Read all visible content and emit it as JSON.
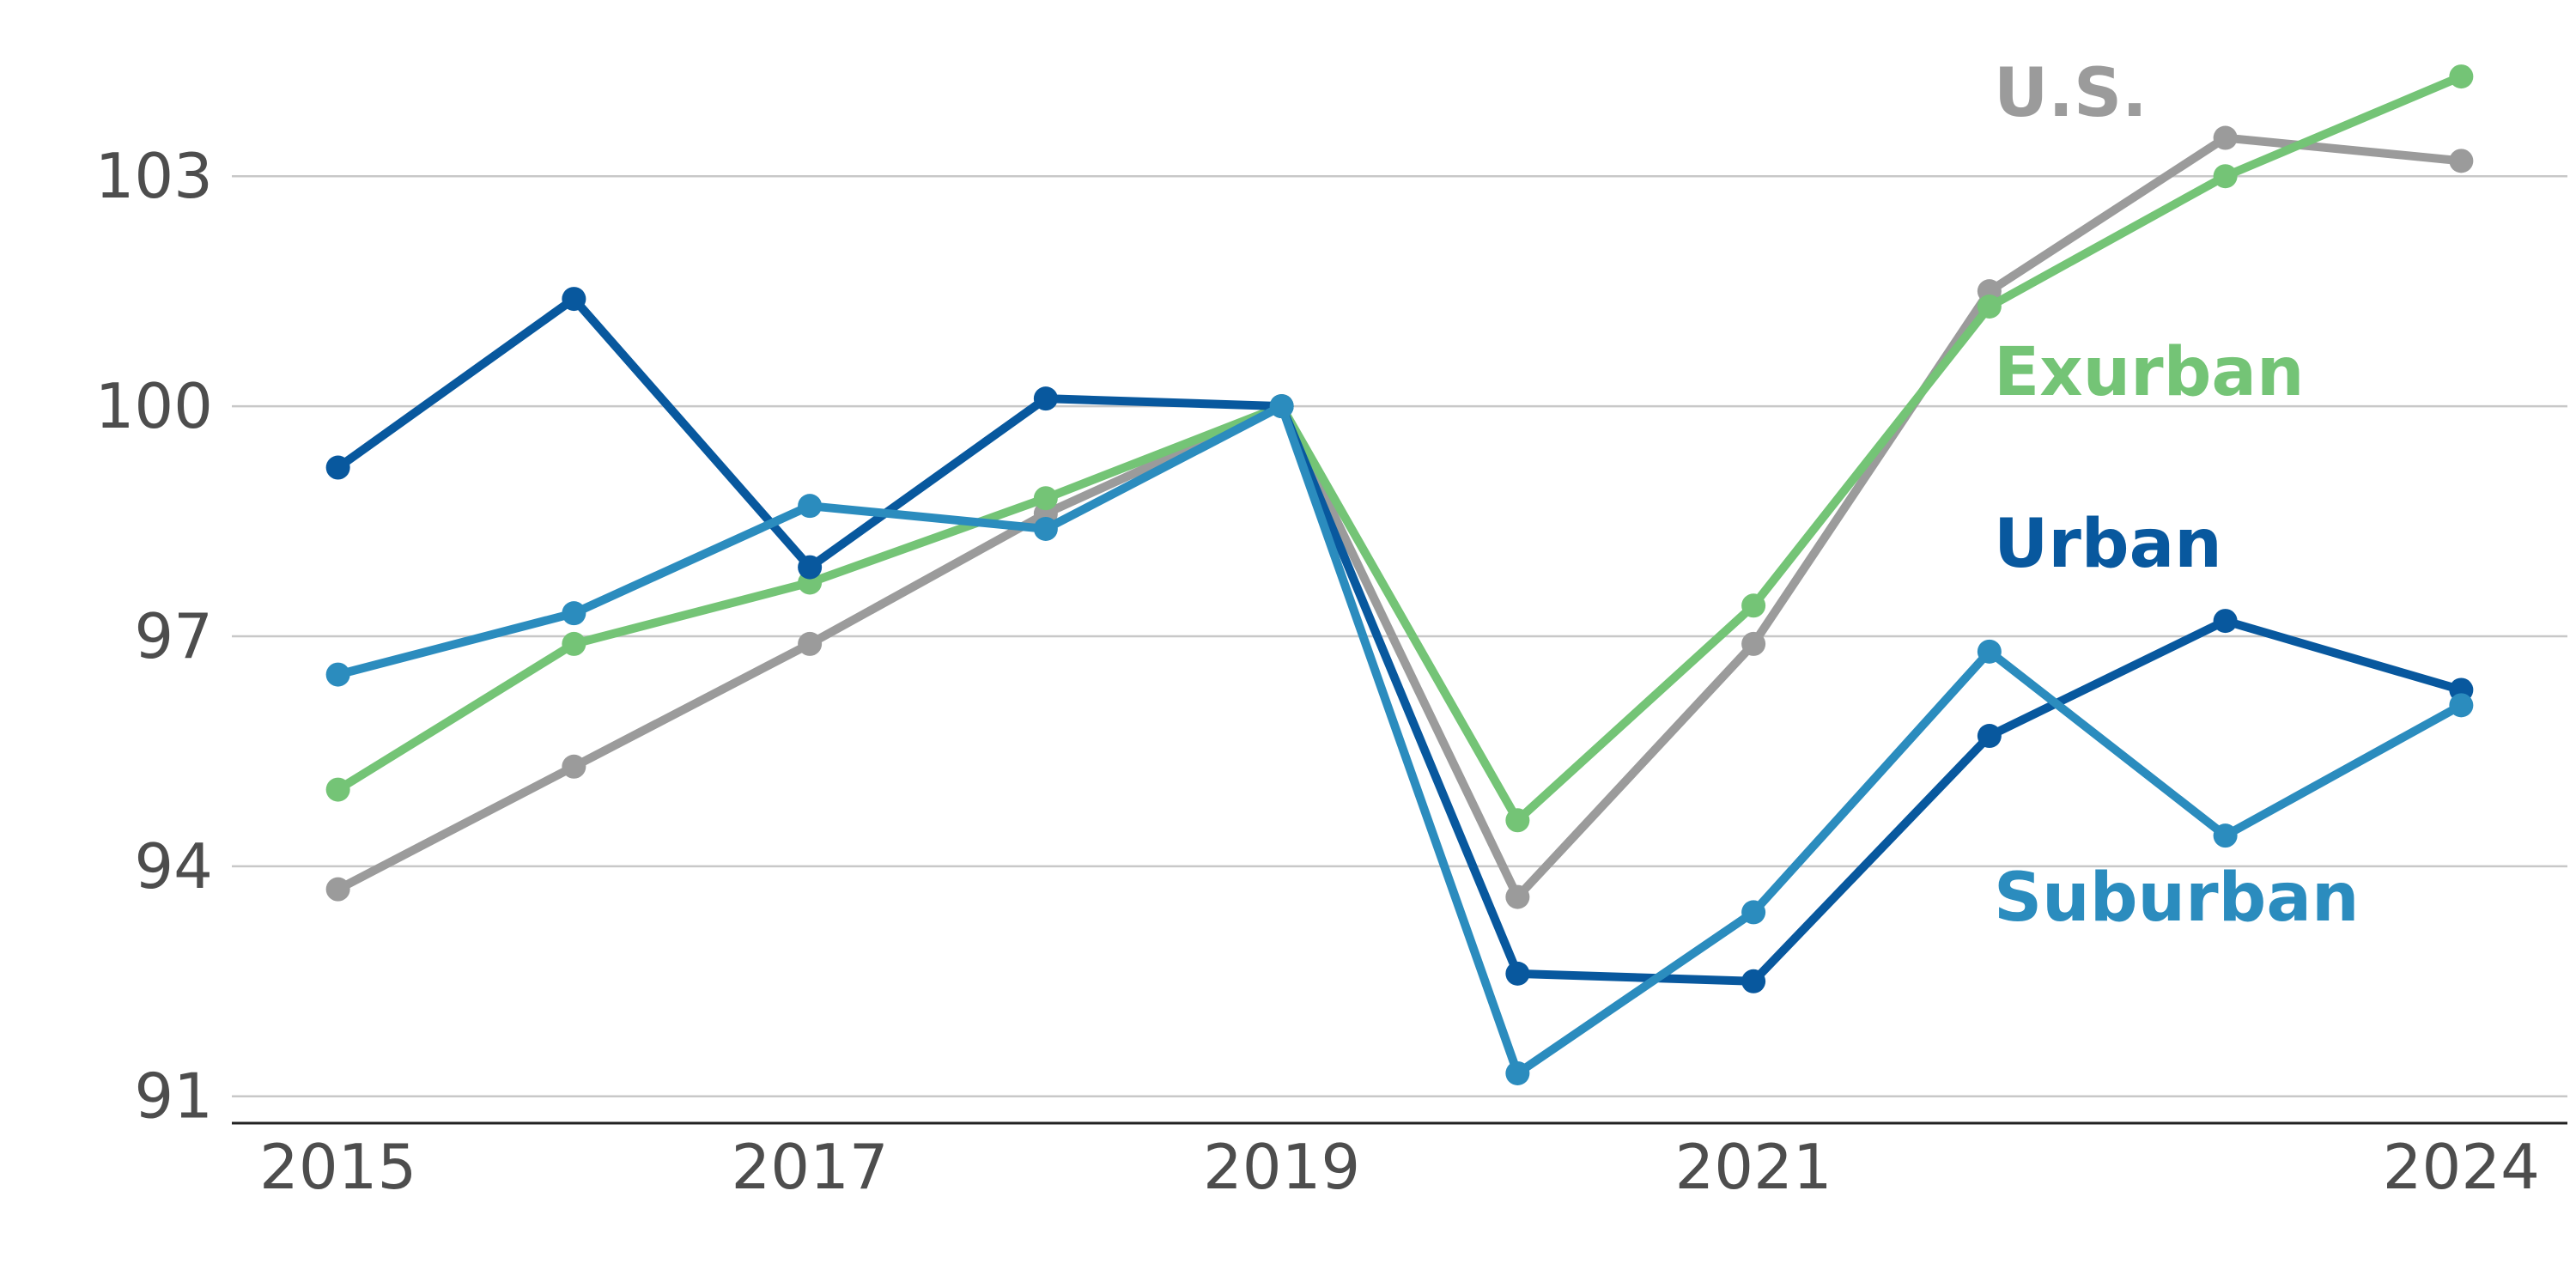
{
  "chart_data": {
    "type": "line",
    "title": "",
    "xlabel": "",
    "ylabel": "",
    "x": [
      2015,
      2016,
      2017,
      2018,
      2019,
      2020,
      2021,
      2022,
      2023,
      2024
    ],
    "x_tick_labels": [
      "2015",
      "2017",
      "2019",
      "2021",
      "2024"
    ],
    "x_ticks": [
      2015,
      2017,
      2019,
      2021,
      2024
    ],
    "y_ticks": [
      91,
      94,
      97,
      100,
      103
    ],
    "y_tick_labels": [
      "91",
      "94",
      "97",
      "100",
      "103"
    ],
    "xlim": [
      2014.55,
      2024.45
    ],
    "ylim": [
      90.65,
      104.85
    ],
    "grid": "horizontal",
    "legend": "direct labels at right",
    "series": [
      {
        "name": "U.S.",
        "color": "#9b9b9b",
        "values": [
          93.7,
          95.3,
          96.9,
          98.6,
          100.0,
          93.6,
          96.9,
          101.5,
          103.5,
          103.2
        ]
      },
      {
        "name": "Exurban",
        "color": "#74c476",
        "values": [
          95.0,
          96.9,
          97.7,
          98.8,
          100.0,
          94.6,
          97.4,
          101.3,
          103.0,
          104.3
        ]
      },
      {
        "name": "Urban",
        "color": "#08589e",
        "values": [
          99.2,
          101.4,
          97.9,
          100.1,
          100.0,
          92.6,
          92.5,
          95.7,
          97.2,
          96.3
        ]
      },
      {
        "name": "Suburban",
        "color": "#2b8cbe",
        "values": [
          96.5,
          97.3,
          98.7,
          98.4,
          100.0,
          91.3,
          93.4,
          96.8,
          94.4,
          96.1
        ]
      }
    ],
    "label_order": [
      "U.S.",
      "Exurban",
      "Urban",
      "Suburban"
    ]
  }
}
